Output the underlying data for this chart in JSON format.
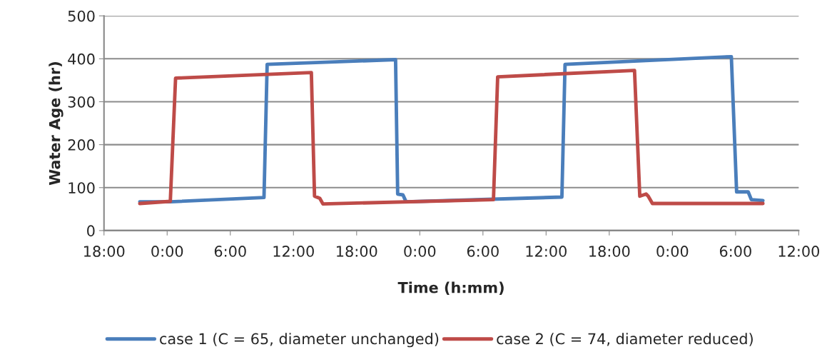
{
  "chart_data": {
    "type": "line",
    "xlabel": "Time (h:mm)",
    "ylabel": "Water Age (hr)",
    "xlim": [
      "2000-01-01T18:00",
      "2000-01-04T12:00"
    ],
    "xticks": [
      {
        "value": "2000-01-01T18:00",
        "label": "18:00"
      },
      {
        "value": "2000-01-02T00:00",
        "label": "0:00"
      },
      {
        "value": "2000-01-02T06:00",
        "label": "6:00"
      },
      {
        "value": "2000-01-02T12:00",
        "label": "12:00"
      },
      {
        "value": "2000-01-02T18:00",
        "label": "18:00"
      },
      {
        "value": "2000-01-03T00:00",
        "label": "0:00"
      },
      {
        "value": "2000-01-03T06:00",
        "label": "6:00"
      },
      {
        "value": "2000-01-03T12:00",
        "label": "12:00"
      },
      {
        "value": "2000-01-03T18:00",
        "label": "18:00"
      },
      {
        "value": "2000-01-04T00:00",
        "label": "0:00"
      },
      {
        "value": "2000-01-04T06:00",
        "label": "6:00"
      },
      {
        "value": "2000-01-04T12:00",
        "label": "12:00"
      }
    ],
    "ylim": [
      0,
      500
    ],
    "yticks": [
      0,
      100,
      200,
      300,
      400,
      500
    ],
    "grid": "y",
    "legend": "bottom",
    "marker": "none",
    "line_style": "solid",
    "series": [
      {
        "name": "case 1 (C = 65, diameter unchanged)",
        "color": "#4a7ebb",
        "x": [
          "2000-01-01T21:24",
          "2000-01-02T00:18",
          "2000-01-02T09:12",
          "2000-01-02T09:30",
          "2000-01-02T21:42",
          "2000-01-02T21:54",
          "2000-01-02T22:24",
          "2000-01-02T22:42",
          "2000-01-03T13:30",
          "2000-01-03T13:48",
          "2000-01-04T05:36",
          "2000-01-04T06:06",
          "2000-01-04T07:12",
          "2000-01-04T07:30",
          "2000-01-04T08:36"
        ],
        "values": [
          67,
          67,
          77,
          387,
          398,
          85,
          83,
          67,
          78,
          387,
          405,
          90,
          90,
          72,
          70
        ]
      },
      {
        "name": "case 2 (C = 74, diameter reduced)",
        "color": "#be4b48",
        "x": [
          "2000-01-01T21:24",
          "2000-01-02T00:18",
          "2000-01-02T00:48",
          "2000-01-02T13:42",
          "2000-01-02T14:00",
          "2000-01-02T14:30",
          "2000-01-02T14:48",
          "2000-01-03T07:00",
          "2000-01-03T07:24",
          "2000-01-03T20:24",
          "2000-01-03T20:54",
          "2000-01-03T21:30",
          "2000-01-03T21:42",
          "2000-01-03T22:06",
          "2000-01-04T08:36"
        ],
        "values": [
          63,
          68,
          355,
          368,
          80,
          75,
          62,
          72,
          358,
          373,
          80,
          85,
          80,
          63,
          63
        ]
      }
    ]
  }
}
